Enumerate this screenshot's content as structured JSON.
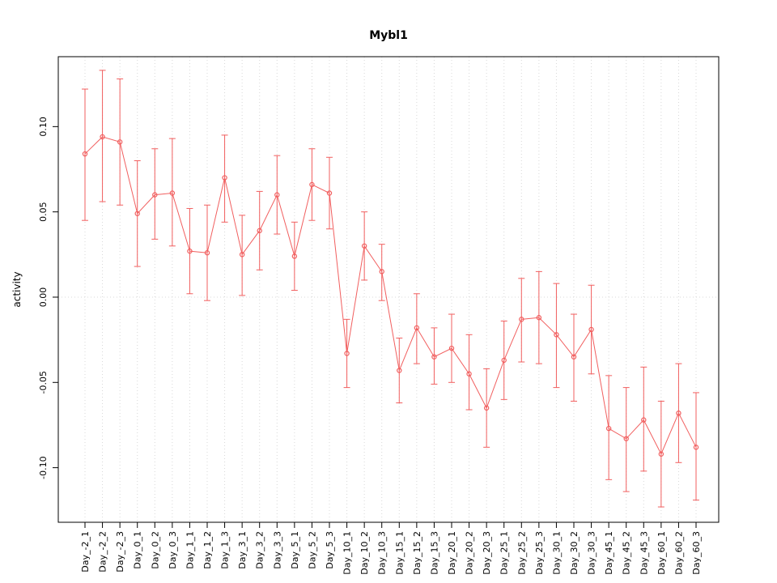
{
  "chart_data": {
    "type": "scatter",
    "title": "Mybl1",
    "xlabel": "",
    "ylabel": "activity",
    "legend": "none",
    "grid": "dotted vertical line at each category; dotted horizontal line at y=0",
    "point_style": "open circle with error bars, connected by line",
    "ylim": [
      -0.132,
      0.141
    ],
    "ytick_values": [
      -0.1,
      -0.05,
      0.0,
      0.05,
      0.1
    ],
    "ytick_labels": [
      "-0.10",
      "-0.05",
      "0.00",
      "0.05",
      "0.10"
    ],
    "categories": [
      "Day_-2_1",
      "Day_-2_2",
      "Day_-2_3",
      "Day_0_1",
      "Day_0_2",
      "Day_0_3",
      "Day_1_1",
      "Day_1_2",
      "Day_1_3",
      "Day_3_1",
      "Day_3_2",
      "Day_3_3",
      "Day_5_1",
      "Day_5_2",
      "Day_5_3",
      "Day_10_1",
      "Day_10_2",
      "Day_10_3",
      "Day_15_1",
      "Day_15_2",
      "Day_15_3",
      "Day_20_1",
      "Day_20_2",
      "Day_20_3",
      "Day_25_1",
      "Day_25_2",
      "Day_25_3",
      "Day_30_1",
      "Day_30_2",
      "Day_30_3",
      "Day_45_1",
      "Day_45_2",
      "Day_45_3",
      "Day_60_1",
      "Day_60_2",
      "Day_60_3"
    ],
    "values": [
      0.084,
      0.094,
      0.091,
      0.049,
      0.06,
      0.061,
      0.027,
      0.026,
      0.07,
      0.025,
      0.039,
      0.06,
      0.024,
      0.066,
      0.061,
      -0.033,
      0.03,
      0.015,
      -0.043,
      -0.018,
      -0.035,
      -0.03,
      -0.045,
      -0.065,
      -0.037,
      -0.013,
      -0.012,
      -0.022,
      -0.035,
      -0.019,
      -0.077,
      -0.083,
      -0.072,
      -0.092,
      -0.068,
      -0.088
    ],
    "err_low": [
      0.045,
      0.056,
      0.054,
      0.018,
      0.034,
      0.03,
      0.002,
      -0.002,
      0.044,
      0.001,
      0.016,
      0.037,
      0.004,
      0.045,
      0.04,
      -0.053,
      0.01,
      -0.002,
      -0.062,
      -0.039,
      -0.051,
      -0.05,
      -0.066,
      -0.088,
      -0.06,
      -0.038,
      -0.039,
      -0.053,
      -0.061,
      -0.045,
      -0.107,
      -0.114,
      -0.102,
      -0.123,
      -0.097,
      -0.119
    ],
    "err_high": [
      0.122,
      0.133,
      0.128,
      0.08,
      0.087,
      0.093,
      0.052,
      0.054,
      0.095,
      0.048,
      0.062,
      0.083,
      0.044,
      0.087,
      0.082,
      -0.013,
      0.05,
      0.031,
      -0.024,
      0.002,
      -0.018,
      -0.01,
      -0.022,
      -0.042,
      -0.014,
      0.011,
      0.015,
      0.008,
      -0.01,
      0.007,
      -0.046,
      -0.053,
      -0.041,
      -0.061,
      -0.039,
      -0.056
    ]
  },
  "colors": {
    "series": "#f15f5f",
    "grid": "#d8d8d8",
    "axis": "#000000",
    "background": "#ffffff"
  }
}
